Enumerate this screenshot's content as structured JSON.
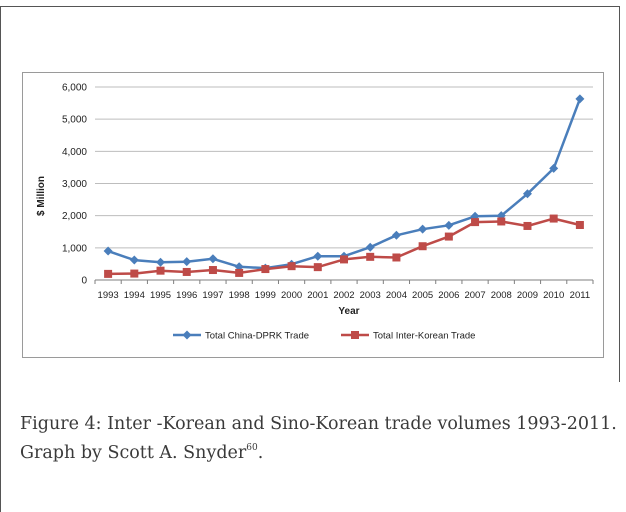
{
  "chart_data": {
    "type": "line",
    "title": "",
    "xlabel": "Year",
    "ylabel": "$ Million",
    "x": [
      1993,
      1994,
      1995,
      1996,
      1997,
      1998,
      1999,
      2000,
      2001,
      2002,
      2003,
      2004,
      2005,
      2006,
      2007,
      2008,
      2009,
      2010,
      2011
    ],
    "x_tick_labels": [
      "1993",
      "1994",
      "1995",
      "1996",
      "1997",
      "1998",
      "1999",
      "2000",
      "2001",
      "2002",
      "2003",
      "2004",
      "2005",
      "2006",
      "2007",
      "2008",
      "2009",
      "2010",
      "2011"
    ],
    "ylim": [
      0,
      6000
    ],
    "y_ticks": [
      0,
      1000,
      2000,
      3000,
      4000,
      5000,
      6000
    ],
    "y_tick_labels": [
      "0",
      "1,000",
      "2,000",
      "3,000",
      "4,000",
      "5,000",
      "6,000"
    ],
    "grid": true,
    "legend_position": "bottom",
    "series": [
      {
        "name": "Total China-DPRK Trade",
        "color": "#4a7ebb",
        "marker": "diamond",
        "values": [
          900,
          620,
          550,
          570,
          660,
          410,
          370,
          490,
          740,
          740,
          1020,
          1390,
          1580,
          1700,
          1980,
          2000,
          2680,
          3470,
          5630
        ]
      },
      {
        "name": "Total Inter-Korean Trade",
        "color": "#be4b48",
        "marker": "square",
        "values": [
          190,
          200,
          290,
          250,
          310,
          220,
          340,
          430,
          400,
          640,
          720,
          700,
          1050,
          1350,
          1800,
          1820,
          1680,
          1910,
          1710
        ]
      }
    ]
  },
  "caption": {
    "text": "Figure 4: Inter -Korean and Sino-Korean trade volumes 1993-2011. Graph by Scott A. Snyder",
    "footnote_ref": "60",
    "end": "."
  }
}
